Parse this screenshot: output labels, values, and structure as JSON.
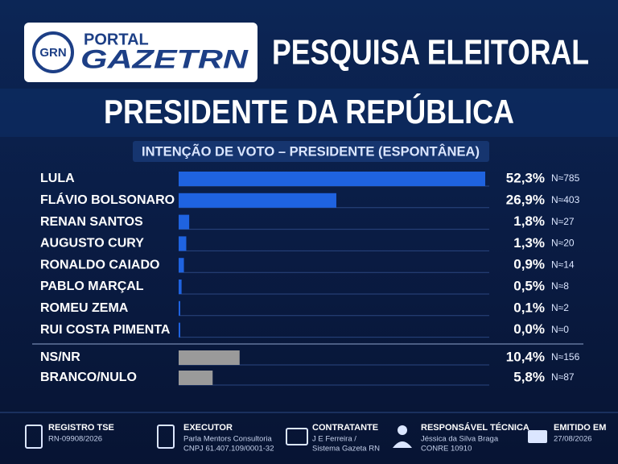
{
  "header": {
    "logo_badge": "GRN",
    "logo_top": "PORTAL",
    "logo_bottom": "GAZETRN",
    "title": "PESQUISA ELEITORAL",
    "subtitle": "PRESIDENTE DA REPÚBLICA"
  },
  "chart_data": [
    {
      "type": "bar",
      "title": "INTENÇÃO DE VOTO – PRESIDENTE (ESPONTÂNEA)",
      "color": "#1f63e0",
      "categories": [
        "LULA",
        "FLÁVIO BOLSONARO",
        "RENAN SANTOS",
        "AUGUSTO CURY",
        "RONALDO CAIADO",
        "PABLO MARÇAL",
        "ROMEU ZEMA",
        "RUI COSTA PIMENTA"
      ],
      "values": [
        52.3,
        26.9,
        1.8,
        1.3,
        0.9,
        0.5,
        0.1,
        0.0
      ],
      "value_labels": [
        "52,3%",
        "26,9%",
        "1,8%",
        "1,3%",
        "0,9%",
        "0,5%",
        "0,1%",
        "0,0%"
      ],
      "n_labels": [
        "N≈785",
        "N≈403",
        "N≈27",
        "N≈20",
        "N≈14",
        "N≈8",
        "N≈2",
        "N≈0"
      ]
    },
    {
      "type": "bar",
      "color": "#9a9a9a",
      "categories": [
        "NS/NR",
        "BRANCO/NULO"
      ],
      "values": [
        10.4,
        5.8
      ],
      "value_labels": [
        "10,4%",
        "5,8%"
      ],
      "n_labels": [
        "N≈156",
        "N≈87"
      ]
    }
  ],
  "footer": {
    "items": [
      {
        "title": "REGISTRO TSE",
        "lines": [
          "RN-09908/2026"
        ]
      },
      {
        "title": "EXECUTOR",
        "lines": [
          "Parla Mentors Consultoria",
          "CNPJ 61.407.109/0001-32"
        ]
      },
      {
        "title": "CONTRATANTE",
        "lines": [
          "J E Ferreira /",
          "Sistema Gazeta RN"
        ]
      },
      {
        "title": "RESPONSÁVEL TÉCNICA",
        "lines": [
          "Jéssica da Silva Braga",
          "CONRE 10910"
        ]
      },
      {
        "title": "EMITIDO EM",
        "lines": [
          "27/08/2026"
        ]
      }
    ]
  }
}
